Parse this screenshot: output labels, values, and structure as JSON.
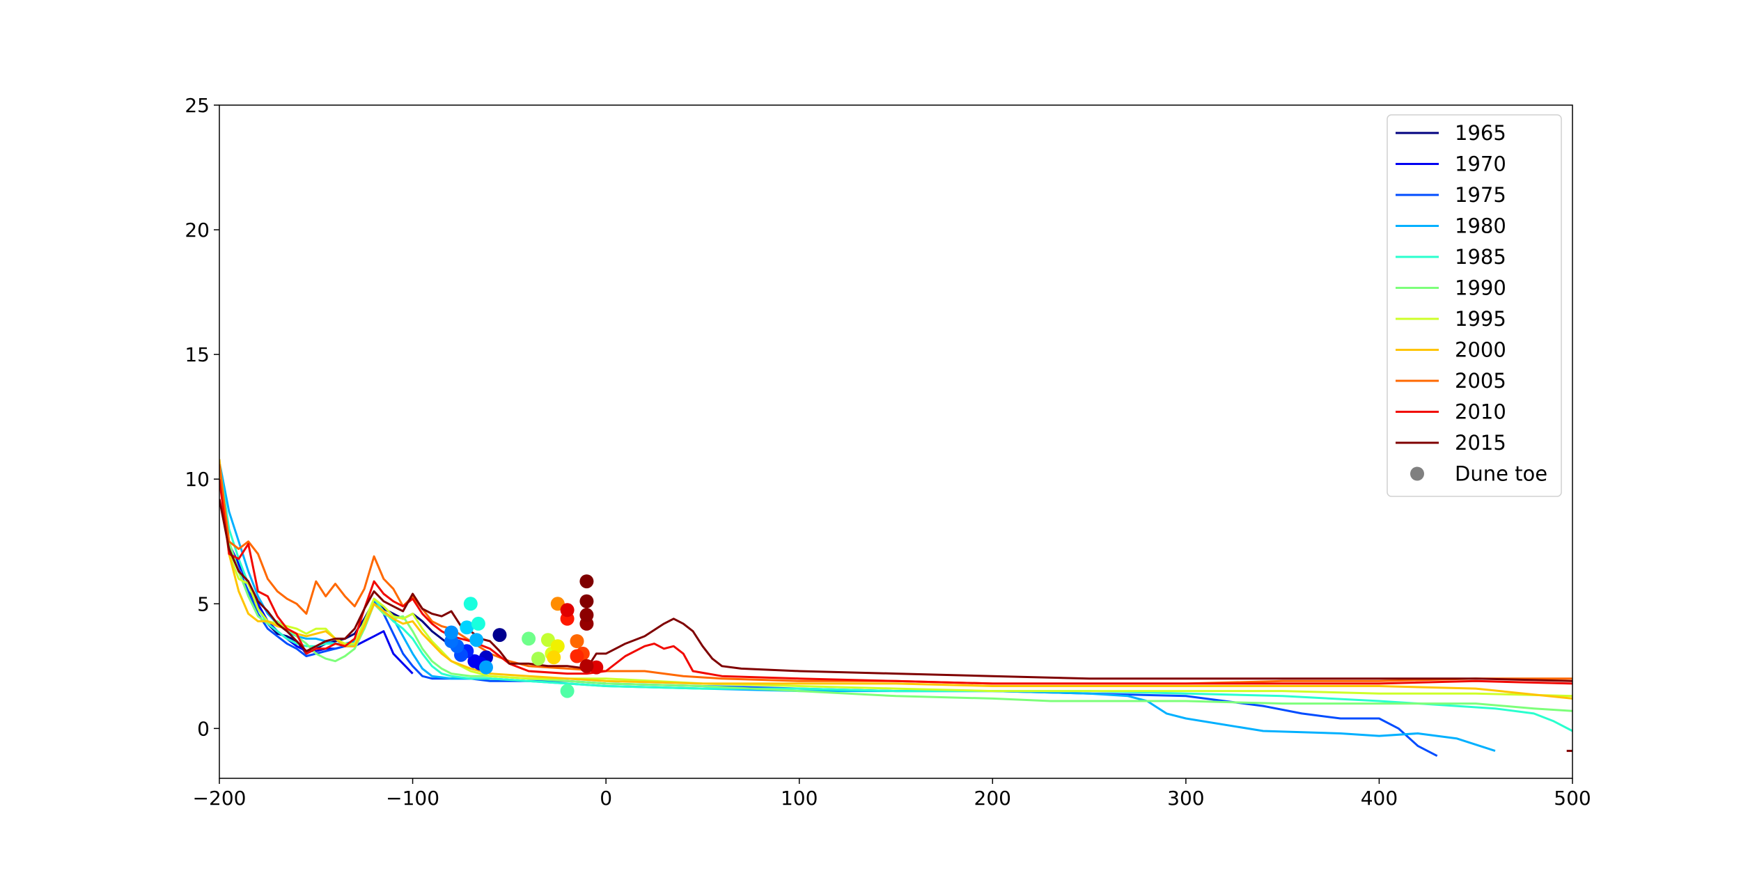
{
  "chart_data": {
    "type": "line",
    "title": "",
    "xlabel": "",
    "ylabel": "",
    "xlim": [
      -200,
      500
    ],
    "ylim": [
      -2,
      25
    ],
    "x_ticks": [
      -200,
      -100,
      0,
      100,
      200,
      300,
      400,
      500
    ],
    "x_tick_labels": [
      "−200",
      "−100",
      "0",
      "100",
      "200",
      "300",
      "400",
      "500"
    ],
    "y_ticks": [
      0,
      5,
      10,
      15,
      20,
      25
    ],
    "y_tick_labels": [
      "0",
      "5",
      "10",
      "15",
      "20",
      "25"
    ],
    "grid": false,
    "legend_position": "top-right",
    "series": [
      {
        "name": "1965",
        "color": "#00007f",
        "x": [
          -200,
          -195,
          -190,
          -185,
          -180,
          -175,
          -170,
          -165,
          -160,
          -155,
          -150,
          -145,
          -140,
          -135,
          -130,
          -125,
          -120,
          -115,
          -110,
          -105,
          -100,
          -95,
          -90,
          -85,
          -80,
          -75,
          -70,
          -65,
          -60
        ],
        "y": [
          10.6,
          7.3,
          6.3,
          5.5,
          4.9,
          4.2,
          3.8,
          3.7,
          3.5,
          3.0,
          3.2,
          3.4,
          3.5,
          3.6,
          3.8,
          4.4,
          5.1,
          4.8,
          4.6,
          4.4,
          4.6,
          4.3,
          3.9,
          3.6,
          3.3,
          3.1,
          2.9,
          2.7,
          2.5
        ]
      },
      {
        "name": "1970",
        "color": "#0000f1",
        "x": [
          -200,
          -195,
          -190,
          -185,
          -180,
          -175,
          -170,
          -165,
          -160,
          -155,
          -150,
          -145,
          -140,
          -135,
          -130,
          -125,
          -120,
          -115,
          -110,
          -105,
          -100
        ],
        "y": [
          10.6,
          7.4,
          6.6,
          5.8,
          5.0,
          4.3,
          3.9,
          3.6,
          3.3,
          3.1,
          3.1,
          3.2,
          3.2,
          3.3,
          3.3,
          3.5,
          3.7,
          3.9,
          3.0,
          2.6,
          2.2
        ]
      },
      {
        "name": "1975",
        "color": "#004cff",
        "x": [
          -200,
          -195,
          -190,
          -185,
          -180,
          -175,
          -170,
          -165,
          -160,
          -155,
          -150,
          -145,
          -140,
          -135,
          -130,
          -125,
          -120,
          -115,
          -110,
          -105,
          -100,
          -95,
          -90,
          -80,
          -70,
          -60,
          -40,
          -20,
          0,
          50,
          100,
          150,
          200,
          250,
          300,
          320,
          340,
          360,
          380,
          400,
          410,
          420,
          430
        ],
        "y": [
          10.6,
          7.3,
          6.4,
          5.5,
          4.6,
          4.0,
          3.7,
          3.4,
          3.2,
          2.9,
          3.0,
          3.1,
          3.2,
          3.3,
          3.4,
          4.2,
          5.1,
          4.6,
          3.8,
          3.0,
          2.5,
          2.1,
          2.0,
          2.0,
          2.0,
          1.9,
          1.9,
          1.9,
          1.8,
          1.7,
          1.6,
          1.5,
          1.5,
          1.4,
          1.3,
          1.1,
          0.9,
          0.6,
          0.4,
          0.4,
          0.0,
          -0.7,
          -1.1
        ]
      },
      {
        "name": "1980",
        "color": "#00b0ff",
        "x": [
          -200,
          -195,
          -190,
          -185,
          -180,
          -175,
          -170,
          -165,
          -160,
          -155,
          -150,
          -145,
          -140,
          -135,
          -130,
          -125,
          -120,
          -115,
          -110,
          -105,
          -100,
          -95,
          -90,
          -80,
          -70,
          -60,
          -40,
          -20,
          0,
          50,
          100,
          150,
          200,
          250,
          270,
          280,
          290,
          300,
          340,
          380,
          400,
          420,
          440,
          460
        ],
        "y": [
          10.7,
          8.7,
          7.5,
          6.3,
          5.3,
          4.6,
          4.2,
          3.9,
          3.7,
          3.6,
          3.6,
          3.5,
          3.4,
          3.4,
          3.5,
          4.0,
          5.0,
          4.7,
          4.4,
          3.7,
          3.0,
          2.4,
          2.1,
          2.0,
          2.0,
          2.0,
          1.9,
          1.8,
          1.7,
          1.6,
          1.5,
          1.5,
          1.5,
          1.4,
          1.3,
          1.1,
          0.6,
          0.4,
          -0.1,
          -0.2,
          -0.3,
          -0.2,
          -0.4,
          -0.9
        ]
      },
      {
        "name": "1985",
        "color": "#29ffce",
        "x": [
          -200,
          -195,
          -190,
          -185,
          -180,
          -175,
          -170,
          -165,
          -160,
          -155,
          -150,
          -145,
          -140,
          -135,
          -130,
          -125,
          -120,
          -115,
          -110,
          -105,
          -100,
          -95,
          -90,
          -85,
          -80,
          -70,
          -60,
          -40,
          -20,
          0,
          50,
          100,
          150,
          200,
          250,
          300,
          350,
          400,
          440,
          460,
          480,
          490,
          500
        ],
        "y": [
          10.6,
          8.0,
          6.8,
          5.8,
          4.8,
          4.2,
          3.9,
          3.6,
          3.4,
          3.3,
          3.3,
          3.4,
          3.4,
          3.3,
          3.4,
          4.0,
          5.2,
          4.7,
          4.3,
          4.0,
          3.6,
          3.0,
          2.5,
          2.2,
          2.1,
          2.0,
          2.0,
          1.9,
          1.8,
          1.7,
          1.6,
          1.6,
          1.5,
          1.5,
          1.5,
          1.4,
          1.3,
          1.1,
          0.9,
          0.8,
          0.6,
          0.3,
          -0.1
        ]
      },
      {
        "name": "1990",
        "color": "#7dff7a",
        "x": [
          -200,
          -195,
          -190,
          -185,
          -180,
          -175,
          -170,
          -165,
          -160,
          -155,
          -150,
          -145,
          -140,
          -135,
          -130,
          -125,
          -120,
          -115,
          -110,
          -105,
          -100,
          -95,
          -90,
          -85,
          -80,
          -70,
          -60,
          -40,
          -20,
          0,
          50,
          100,
          150,
          200,
          230,
          260,
          300,
          350,
          400,
          450,
          480,
          500
        ],
        "y": [
          10.6,
          7.5,
          6.3,
          5.3,
          4.5,
          4.2,
          4.3,
          4.0,
          3.7,
          3.4,
          3.0,
          2.8,
          2.7,
          2.9,
          3.2,
          4.0,
          5.0,
          4.6,
          4.4,
          4.5,
          3.9,
          3.2,
          2.7,
          2.4,
          2.2,
          2.1,
          2.1,
          2.0,
          1.9,
          1.8,
          1.7,
          1.5,
          1.3,
          1.2,
          1.1,
          1.1,
          1.1,
          1.0,
          1.0,
          1.0,
          0.8,
          0.7
        ]
      },
      {
        "name": "1995",
        "color": "#ceff29",
        "x": [
          -200,
          -195,
          -190,
          -185,
          -180,
          -175,
          -170,
          -165,
          -160,
          -155,
          -150,
          -145,
          -140,
          -135,
          -130,
          -125,
          -120,
          -115,
          -110,
          -105,
          -100,
          -95,
          -90,
          -85,
          -80,
          -70,
          -60,
          -40,
          -20,
          0,
          50,
          100,
          150,
          200,
          250,
          300,
          350,
          400,
          450,
          500
        ],
        "y": [
          10.6,
          7.0,
          6.0,
          5.8,
          4.8,
          4.3,
          4.2,
          4.1,
          4.0,
          3.8,
          4.0,
          4.0,
          3.6,
          3.4,
          3.4,
          4.3,
          5.2,
          4.9,
          4.5,
          4.4,
          4.6,
          4.0,
          3.5,
          3.1,
          2.7,
          2.3,
          2.1,
          2.0,
          2.0,
          2.0,
          1.8,
          1.7,
          1.6,
          1.5,
          1.5,
          1.5,
          1.5,
          1.4,
          1.4,
          1.3
        ]
      },
      {
        "name": "2000",
        "color": "#ffc400",
        "x": [
          -200,
          -195,
          -190,
          -185,
          -180,
          -175,
          -170,
          -165,
          -160,
          -155,
          -150,
          -145,
          -140,
          -135,
          -130,
          -125,
          -120,
          -115,
          -110,
          -105,
          -100,
          -95,
          -90,
          -85,
          -80,
          -70,
          -60,
          -40,
          -20,
          0,
          50,
          100,
          150,
          200,
          250,
          300,
          350,
          400,
          450,
          500
        ],
        "y": [
          10.8,
          7.0,
          5.5,
          4.6,
          4.3,
          4.3,
          4.1,
          4.0,
          3.8,
          3.7,
          3.8,
          3.9,
          3.6,
          3.3,
          3.3,
          4.1,
          5.0,
          4.7,
          4.4,
          4.2,
          4.3,
          3.8,
          3.4,
          3.0,
          2.7,
          2.4,
          2.2,
          2.1,
          2.0,
          1.9,
          1.8,
          1.8,
          1.8,
          1.7,
          1.7,
          1.7,
          1.7,
          1.7,
          1.6,
          1.2
        ]
      },
      {
        "name": "2005",
        "color": "#ff6800",
        "x": [
          -200,
          -195,
          -190,
          -185,
          -180,
          -175,
          -170,
          -165,
          -160,
          -155,
          -150,
          -145,
          -140,
          -135,
          -130,
          -125,
          -120,
          -115,
          -110,
          -105,
          -100,
          -95,
          -90,
          -85,
          -80,
          -70,
          -60,
          -50,
          -40,
          -20,
          0,
          20,
          40,
          60,
          100,
          150,
          200,
          250,
          300,
          350,
          400,
          450,
          500
        ],
        "y": [
          10.6,
          7.5,
          7.2,
          7.5,
          7.0,
          6.0,
          5.5,
          5.2,
          5.0,
          4.6,
          5.9,
          5.3,
          5.8,
          5.3,
          4.9,
          5.6,
          6.9,
          6.0,
          5.6,
          4.9,
          5.3,
          4.8,
          4.3,
          4.1,
          4.0,
          3.5,
          3.0,
          2.7,
          2.5,
          2.4,
          2.3,
          2.3,
          2.1,
          2.0,
          1.9,
          1.9,
          1.8,
          1.8,
          1.8,
          1.9,
          1.9,
          2.0,
          2.0
        ]
      },
      {
        "name": "2010",
        "color": "#f10800",
        "x": [
          -200,
          -195,
          -190,
          -185,
          -180,
          -175,
          -170,
          -165,
          -160,
          -155,
          -150,
          -145,
          -140,
          -135,
          -130,
          -125,
          -120,
          -115,
          -110,
          -105,
          -100,
          -95,
          -90,
          -85,
          -80,
          -70,
          -60,
          -50,
          -40,
          -20,
          -10,
          0,
          10,
          20,
          25,
          30,
          35,
          40,
          45,
          60,
          100,
          150,
          200,
          250,
          300,
          350,
          400,
          450,
          500
        ],
        "y": [
          10.0,
          7.0,
          6.8,
          7.4,
          5.5,
          5.3,
          4.5,
          4.0,
          3.8,
          3.0,
          3.2,
          3.2,
          3.4,
          3.3,
          3.6,
          4.8,
          5.9,
          5.4,
          5.1,
          4.9,
          5.2,
          4.6,
          4.2,
          3.9,
          3.7,
          3.5,
          3.2,
          2.6,
          2.3,
          2.2,
          2.2,
          2.3,
          2.9,
          3.3,
          3.4,
          3.2,
          3.3,
          3.0,
          2.3,
          2.1,
          2.0,
          1.9,
          1.8,
          1.8,
          1.8,
          1.8,
          1.8,
          1.9,
          1.8
        ]
      },
      {
        "name": "2015",
        "color": "#7f0000",
        "x": [
          -200,
          -195,
          -190,
          -185,
          -180,
          -175,
          -170,
          -165,
          -160,
          -155,
          -150,
          -145,
          -140,
          -135,
          -130,
          -125,
          -120,
          -115,
          -110,
          -105,
          -100,
          -95,
          -90,
          -85,
          -80,
          -75,
          -70,
          -65,
          -60,
          -55,
          -50,
          -40,
          -30,
          -20,
          -10,
          -5,
          0,
          10,
          20,
          30,
          35,
          40,
          45,
          50,
          55,
          60,
          70,
          100,
          150,
          200,
          250,
          300,
          350,
          400,
          450,
          500
        ],
        "y": [
          9.2,
          7.2,
          6.3,
          5.9,
          5.1,
          4.7,
          4.2,
          3.9,
          3.5,
          3.1,
          3.3,
          3.5,
          3.6,
          3.6,
          4.0,
          4.8,
          5.5,
          5.1,
          4.9,
          4.7,
          5.4,
          4.8,
          4.6,
          4.5,
          4.7,
          4.1,
          3.9,
          3.6,
          3.5,
          3.1,
          2.6,
          2.6,
          2.5,
          2.5,
          2.4,
          3.0,
          3.0,
          3.4,
          3.7,
          4.2,
          4.4,
          4.2,
          3.9,
          3.3,
          2.8,
          2.5,
          2.4,
          2.3,
          2.2,
          2.1,
          2.0,
          2.0,
          2.0,
          2.0,
          2.0,
          1.9
        ]
      },
      {
        "name": "",
        "color": "#7f0000",
        "x": [
          497,
          500
        ],
        "y": [
          -0.9,
          -0.9
        ]
      }
    ],
    "markers": {
      "name": "Dune toe",
      "legend_color": "#808080",
      "points": [
        {
          "x": -55,
          "y": 3.75,
          "color": "#00008f"
        },
        {
          "x": -62,
          "y": 2.85,
          "color": "#0000c8"
        },
        {
          "x": -65,
          "y": 2.6,
          "color": "#0000e8"
        },
        {
          "x": -68,
          "y": 2.7,
          "color": "#0000f1"
        },
        {
          "x": -72,
          "y": 3.1,
          "color": "#0020ff"
        },
        {
          "x": -75,
          "y": 2.95,
          "color": "#004cff"
        },
        {
          "x": -77,
          "y": 3.3,
          "color": "#0064ff"
        },
        {
          "x": -80,
          "y": 3.5,
          "color": "#0070ff"
        },
        {
          "x": -80,
          "y": 3.85,
          "color": "#0090ff"
        },
        {
          "x": -62,
          "y": 2.45,
          "color": "#00a0ff"
        },
        {
          "x": -67,
          "y": 3.55,
          "color": "#00b4ff"
        },
        {
          "x": -72,
          "y": 4.05,
          "color": "#00d4ff"
        },
        {
          "x": -66,
          "y": 4.2,
          "color": "#19ffde"
        },
        {
          "x": -70,
          "y": 5.0,
          "color": "#19ffde"
        },
        {
          "x": -20,
          "y": 1.5,
          "color": "#50ffa6"
        },
        {
          "x": -40,
          "y": 3.6,
          "color": "#6eff8a"
        },
        {
          "x": -35,
          "y": 2.8,
          "color": "#a6ff50"
        },
        {
          "x": -30,
          "y": 3.55,
          "color": "#c4ff32"
        },
        {
          "x": -28,
          "y": 3.0,
          "color": "#dcff1a"
        },
        {
          "x": -25,
          "y": 3.3,
          "color": "#f0f100"
        },
        {
          "x": -27,
          "y": 2.85,
          "color": "#ffd800"
        },
        {
          "x": -25,
          "y": 5.0,
          "color": "#ff8c00"
        },
        {
          "x": -15,
          "y": 3.5,
          "color": "#ff6800"
        },
        {
          "x": -12,
          "y": 3.0,
          "color": "#ff4000"
        },
        {
          "x": -15,
          "y": 2.9,
          "color": "#ff2800"
        },
        {
          "x": -20,
          "y": 4.4,
          "color": "#ff1800"
        },
        {
          "x": -20,
          "y": 4.75,
          "color": "#e00000"
        },
        {
          "x": -5,
          "y": 2.45,
          "color": "#e00000"
        },
        {
          "x": -10,
          "y": 2.5,
          "color": "#b40000"
        },
        {
          "x": -10,
          "y": 4.2,
          "color": "#960000"
        },
        {
          "x": -10,
          "y": 4.55,
          "color": "#8c0000"
        },
        {
          "x": -10,
          "y": 5.1,
          "color": "#820000"
        },
        {
          "x": -10,
          "y": 5.9,
          "color": "#7f0000"
        }
      ]
    }
  }
}
